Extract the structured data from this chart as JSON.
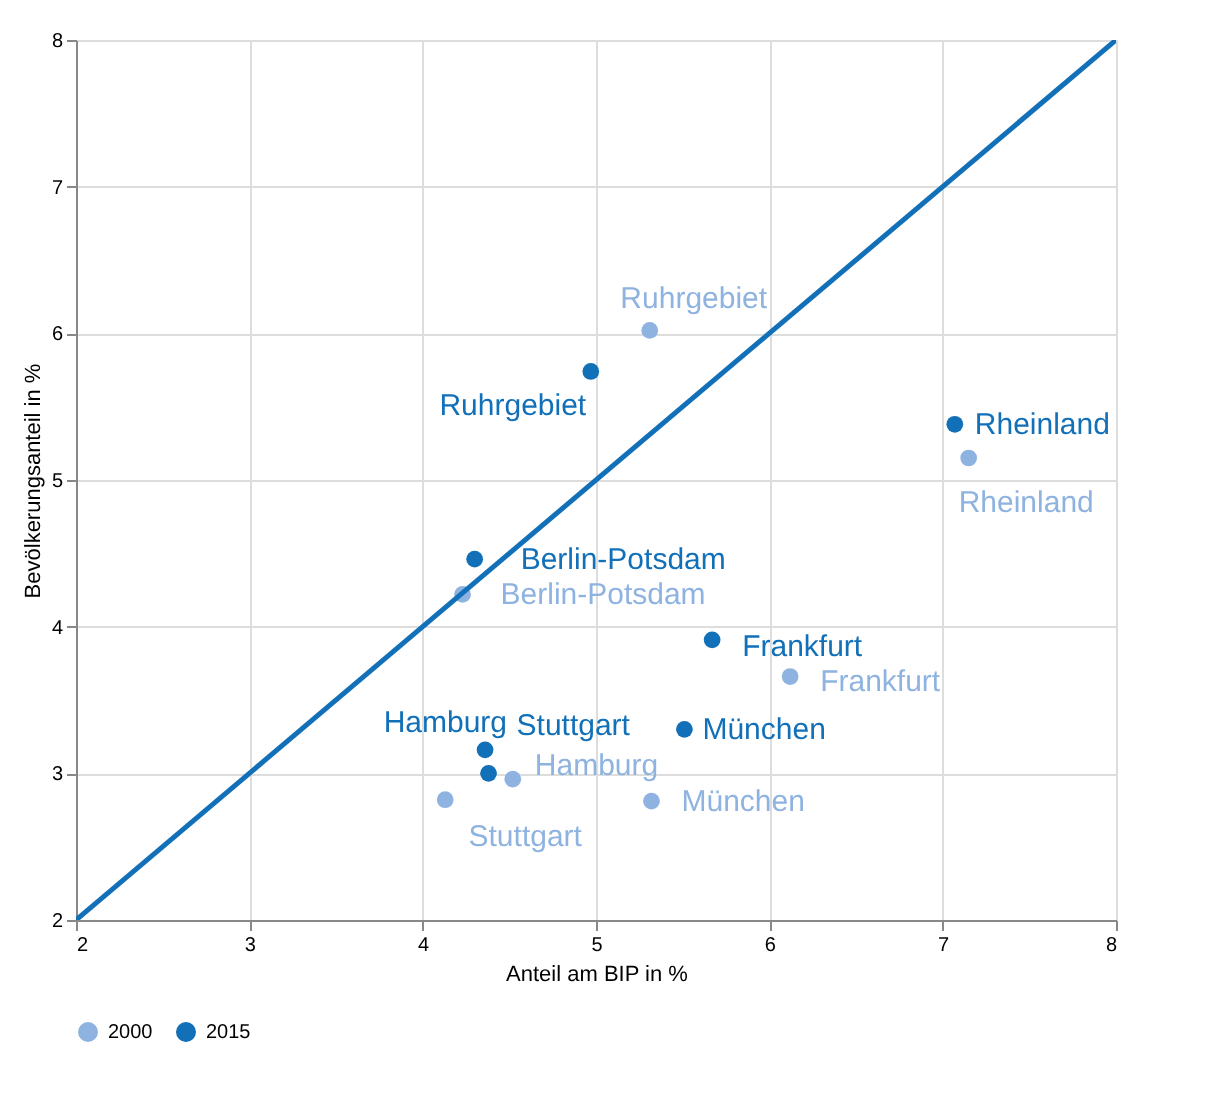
{
  "chart_data": {
    "type": "scatter",
    "xlabel": "Anteil am BIP in %",
    "ylabel": "Bevölkerungsanteil in %",
    "xlim": [
      2,
      8
    ],
    "ylim": [
      2,
      8
    ],
    "xticks": [
      2,
      3,
      4,
      5,
      6,
      7,
      8
    ],
    "yticks": [
      2,
      3,
      4,
      5,
      6,
      7,
      8
    ],
    "grid": true,
    "legend": "bottom",
    "marker": "circle",
    "series": [
      {
        "name": "2000",
        "color": "#8fb3e0",
        "x": [
          5.31,
          7.15,
          4.23,
          6.12,
          4.52,
          4.13,
          5.32
        ],
        "values": [
          6.02,
          5.15,
          4.22,
          3.66,
          2.96,
          2.82,
          2.81
        ]
      },
      {
        "name": "2015",
        "color": "#1270b8",
        "x": [
          4.97,
          7.07,
          4.3,
          5.67,
          5.51,
          4.36,
          4.38
        ],
        "values": [
          5.74,
          5.38,
          4.46,
          3.91,
          3.3,
          3.16,
          3.0
        ]
      },
      {
        "type": "line",
        "marker": "none",
        "color": "#1270b8",
        "x": [
          2,
          8
        ],
        "values": [
          2,
          8
        ]
      }
    ],
    "annotations": [
      {
        "text": "Ruhrgebiet",
        "x": 5.31,
        "y": 6.02
      },
      {
        "text": "Rheinland",
        "x": 7.15,
        "y": 5.15
      },
      {
        "text": "Berlin-Potsdam",
        "x": 4.23,
        "y": 4.22
      },
      {
        "text": "Frankfurt",
        "x": 6.12,
        "y": 3.66
      },
      {
        "text": "Hamburg",
        "x": 4.52,
        "y": 2.96
      },
      {
        "text": "Stuttgart",
        "x": 4.13,
        "y": 2.82
      },
      {
        "text": "München",
        "x": 5.32,
        "y": 2.81
      },
      {
        "text": "Ruhrgebiet",
        "x": 4.97,
        "y": 5.74
      },
      {
        "text": "Rheinland",
        "x": 7.07,
        "y": 5.38
      },
      {
        "text": "Berlin-Potsdam",
        "x": 4.3,
        "y": 4.46
      },
      {
        "text": "Frankfurt",
        "x": 5.67,
        "y": 3.91
      },
      {
        "text": "München",
        "x": 5.51,
        "y": 3.3
      },
      {
        "text": "Hamburg",
        "x": 4.36,
        "y": 3.16
      },
      {
        "text": "Stuttgart",
        "x": 4.38,
        "y": 3.0
      }
    ]
  }
}
